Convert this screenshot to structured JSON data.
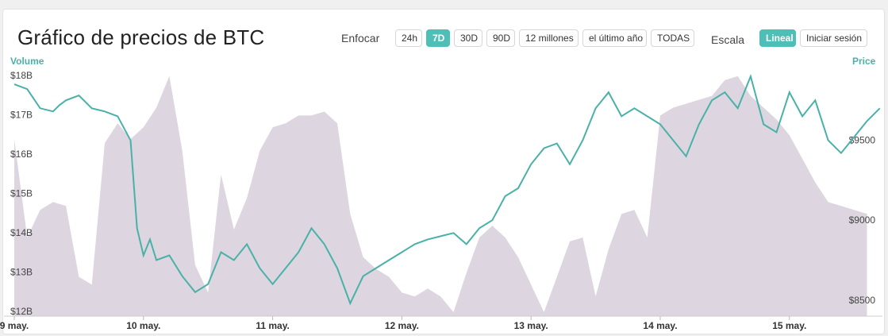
{
  "header": {
    "title": "Gráfico de precios de BTC",
    "zoom_label": "Enfocar",
    "zoom_buttons": [
      "24h",
      "7D",
      "30D",
      "90D",
      "12 millones",
      "el último año",
      "TODAS"
    ],
    "zoom_active": "7D",
    "scale_label": "Escala",
    "scale_buttons": [
      "Lineal",
      "Iniciar sesión"
    ],
    "scale_active": "Lineal"
  },
  "colors": {
    "price_line": "#4ab1a8",
    "volume_fill": "#ddd5df",
    "active_button": "#4dbfb6"
  },
  "chart_data": {
    "type": "line",
    "left_axis_title": "Volume",
    "right_axis_title": "Price",
    "x_categories": [
      "9 may.",
      "10 may.",
      "11 may.",
      "12 may.",
      "13 may.",
      "14 may.",
      "15 may."
    ],
    "volume_axis": {
      "ticks": [
        "$12B",
        "$13B",
        "$14B",
        "$15B",
        "$16B",
        "$17B",
        "$18B"
      ],
      "ylim": [
        12,
        18.3
      ]
    },
    "price_axis": {
      "ticks": [
        "$8500",
        "$9000",
        "$9500"
      ],
      "ylim": [
        8400,
        9950
      ]
    },
    "series": [
      {
        "type": "area",
        "x": [
          9.0,
          9.1,
          9.2,
          9.3,
          9.4,
          9.5,
          9.6,
          9.7,
          9.8,
          9.9,
          10.0,
          10.1,
          10.2,
          10.3,
          10.4,
          10.5,
          10.6,
          10.7,
          10.8,
          10.9,
          11.0,
          11.1,
          11.2,
          11.3,
          11.4,
          11.5,
          11.6,
          11.7,
          11.8,
          11.9,
          12.0,
          12.1,
          12.2,
          12.3,
          12.4,
          12.5,
          12.6,
          12.7,
          12.8,
          12.9,
          13.0,
          13.1,
          13.2,
          13.3,
          13.4,
          13.5,
          13.6,
          13.7,
          13.8,
          13.9,
          14.0,
          14.1,
          14.2,
          14.3,
          14.4,
          14.5,
          14.6,
          14.7,
          14.8,
          14.9,
          15.0,
          15.1,
          15.2,
          15.3,
          15.4,
          15.5,
          15.6
        ],
        "values": [
          16.5,
          14.0,
          14.7,
          14.9,
          14.8,
          13.0,
          12.8,
          16.4,
          16.9,
          16.5,
          16.8,
          17.3,
          18.1,
          16.2,
          13.3,
          12.6,
          15.6,
          14.2,
          15.0,
          16.2,
          16.8,
          16.9,
          17.1,
          17.1,
          17.2,
          16.9,
          14.6,
          13.5,
          13.2,
          13.0,
          12.6,
          12.5,
          12.7,
          12.5,
          12.1,
          13.1,
          14.0,
          14.3,
          14.0,
          13.5,
          12.8,
          12.1,
          13.0,
          13.9,
          14.0,
          12.5,
          13.7,
          14.6,
          14.7,
          14.0,
          17.1,
          17.3,
          17.4,
          17.5,
          17.6,
          18.0,
          18.1,
          17.6,
          17.3,
          17.0,
          16.6,
          16.0,
          15.4,
          14.9,
          14.8,
          14.7,
          14.6
        ]
      },
      {
        "type": "line",
        "x": [
          9.0,
          9.1,
          9.2,
          9.3,
          9.35,
          9.4,
          9.5,
          9.6,
          9.7,
          9.8,
          9.9,
          9.95,
          10.0,
          10.05,
          10.1,
          10.2,
          10.3,
          10.4,
          10.5,
          10.6,
          10.7,
          10.8,
          10.9,
          11.0,
          11.1,
          11.2,
          11.3,
          11.4,
          11.5,
          11.6,
          11.7,
          11.8,
          11.9,
          12.0,
          12.1,
          12.2,
          12.3,
          12.4,
          12.5,
          12.6,
          12.7,
          12.8,
          12.9,
          13.0,
          13.1,
          13.2,
          13.3,
          13.4,
          13.5,
          13.6,
          13.7,
          13.8,
          13.9,
          14.0,
          14.1,
          14.2,
          14.3,
          14.4,
          14.5,
          14.6,
          14.7,
          14.8,
          14.9,
          15.0,
          15.1,
          15.2,
          15.3,
          15.4,
          15.5,
          15.6,
          15.7
        ],
        "values": [
          9850,
          9820,
          9700,
          9680,
          9720,
          9750,
          9780,
          9700,
          9680,
          9650,
          9500,
          8950,
          8780,
          8880,
          8750,
          8780,
          8650,
          8550,
          8600,
          8800,
          8750,
          8850,
          8700,
          8600,
          8700,
          8800,
          8950,
          8850,
          8700,
          8480,
          8650,
          8700,
          8750,
          8800,
          8850,
          8880,
          8900,
          8920,
          8850,
          8950,
          9000,
          9150,
          9200,
          9350,
          9450,
          9480,
          9350,
          9500,
          9700,
          9800,
          9650,
          9700,
          9650,
          9600,
          9500,
          9400,
          9600,
          9750,
          9800,
          9700,
          9900,
          9600,
          9550,
          9800,
          9650,
          9750,
          9500,
          9420,
          9520,
          9620,
          9700
        ]
      }
    ]
  }
}
